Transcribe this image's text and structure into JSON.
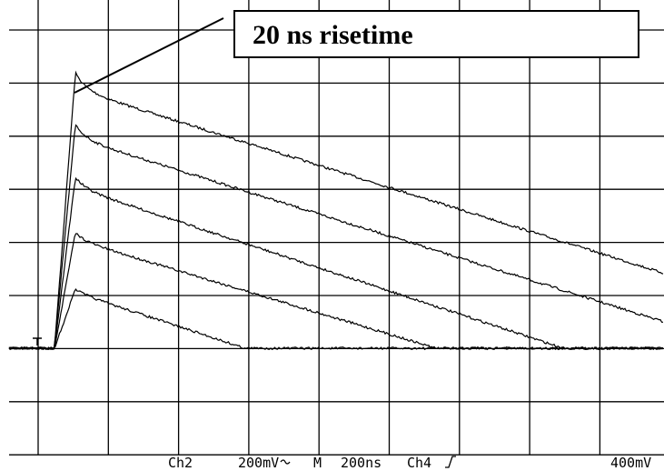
{
  "annotation": "20 ns risetime",
  "status": [
    "Ch2",
    "200mV",
    "M",
    "200ns",
    "Ch4",
    "400mV"
  ]
}
